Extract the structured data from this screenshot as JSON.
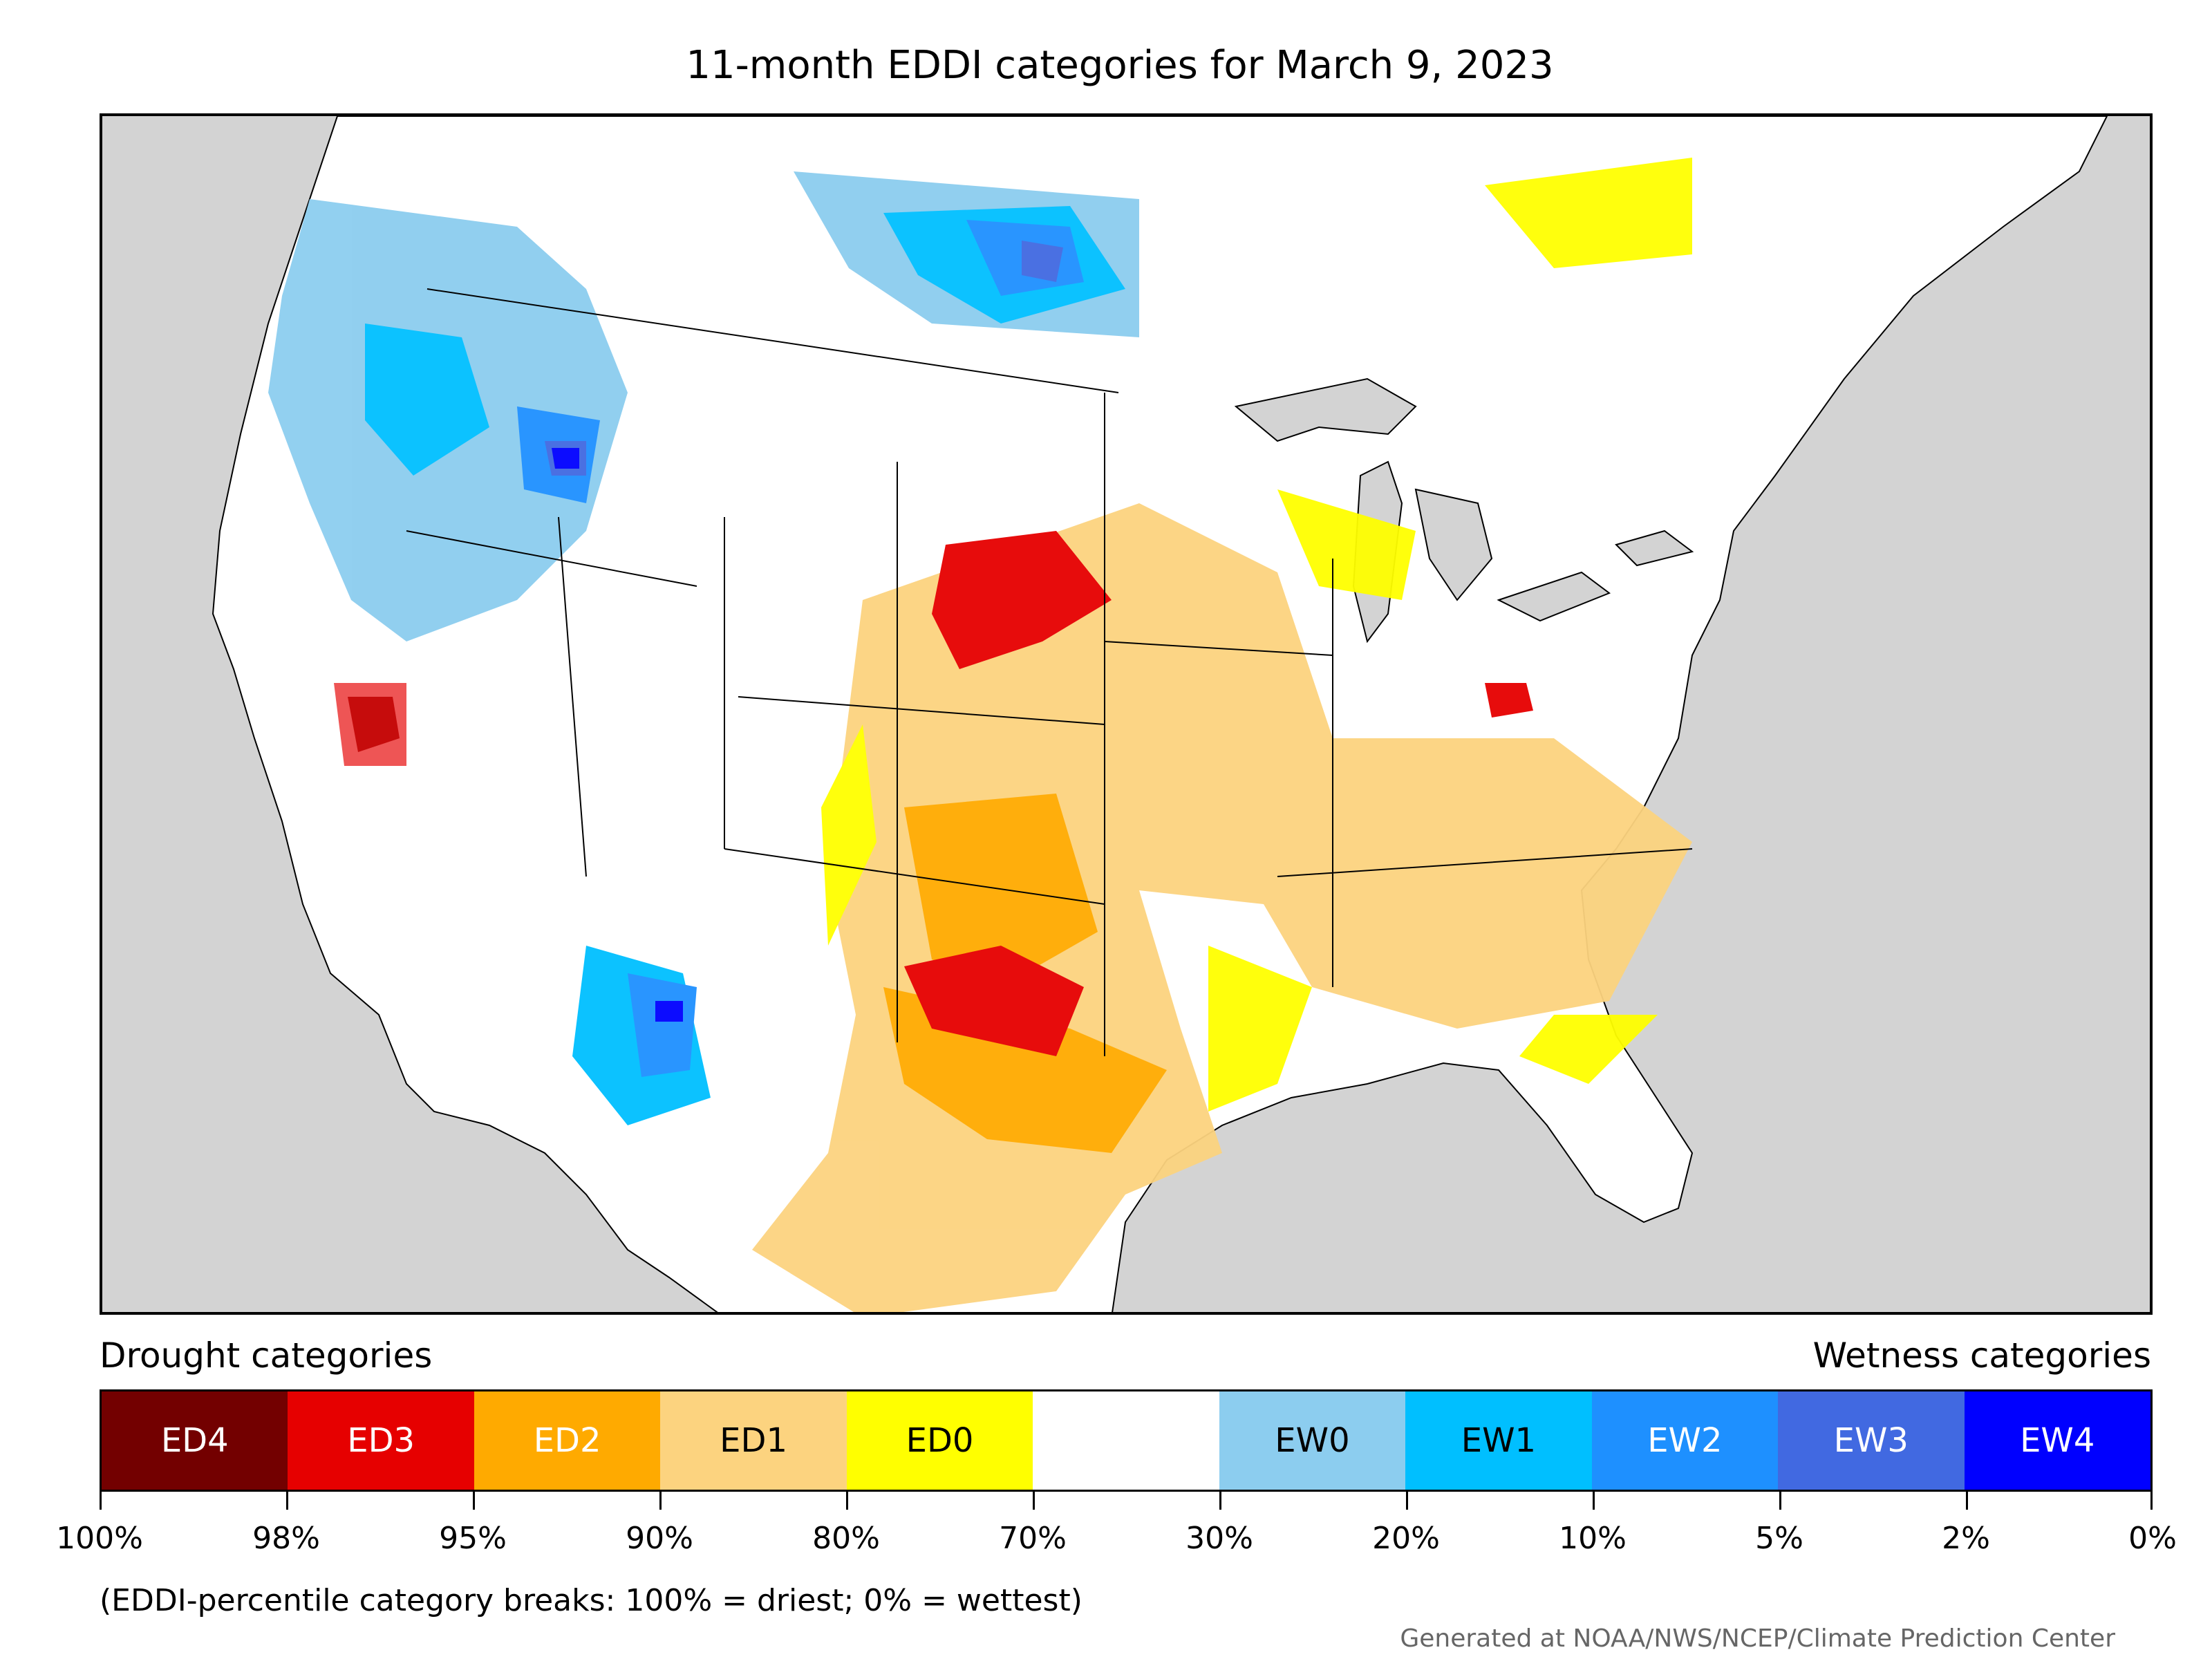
{
  "title": "11-month EDDI categories for March 9, 2023",
  "legend": {
    "drought_label": "Drought categories",
    "wetness_label": "Wetness categories",
    "categories": [
      {
        "label": "ED4",
        "color": "#730000",
        "text_color": "#ffffff"
      },
      {
        "label": "ED3",
        "color": "#e60000",
        "text_color": "#ffffff"
      },
      {
        "label": "ED2",
        "color": "#ffaa00",
        "text_color": "#ffffff"
      },
      {
        "label": "ED1",
        "color": "#fcd37f",
        "text_color": "#000000"
      },
      {
        "label": "ED0",
        "color": "#ffff00",
        "text_color": "#000000"
      },
      {
        "label": "",
        "color": "#ffffff",
        "text_color": "#000000"
      },
      {
        "label": "EW0",
        "color": "#8ccdef",
        "text_color": "#000000"
      },
      {
        "label": "EW1",
        "color": "#00bfff",
        "text_color": "#000000"
      },
      {
        "label": "EW2",
        "color": "#1e90ff",
        "text_color": "#ffffff"
      },
      {
        "label": "EW3",
        "color": "#4169e1",
        "text_color": "#ffffff"
      },
      {
        "label": "EW4",
        "color": "#0000ff",
        "text_color": "#ffffff"
      }
    ],
    "tick_labels": [
      "100%",
      "98%",
      "95%",
      "90%",
      "80%",
      "70%",
      "30%",
      "20%",
      "10%",
      "5%",
      "2%",
      "0%"
    ]
  },
  "footnote": "(EDDI-percentile category breaks: 100% = driest; 0% = wettest)",
  "credit": "Generated at NOAA/NWS/NCEP/Climate Prediction Center",
  "map": {
    "background_color": "#d3d3d3",
    "land_color": "#ffffff"
  }
}
